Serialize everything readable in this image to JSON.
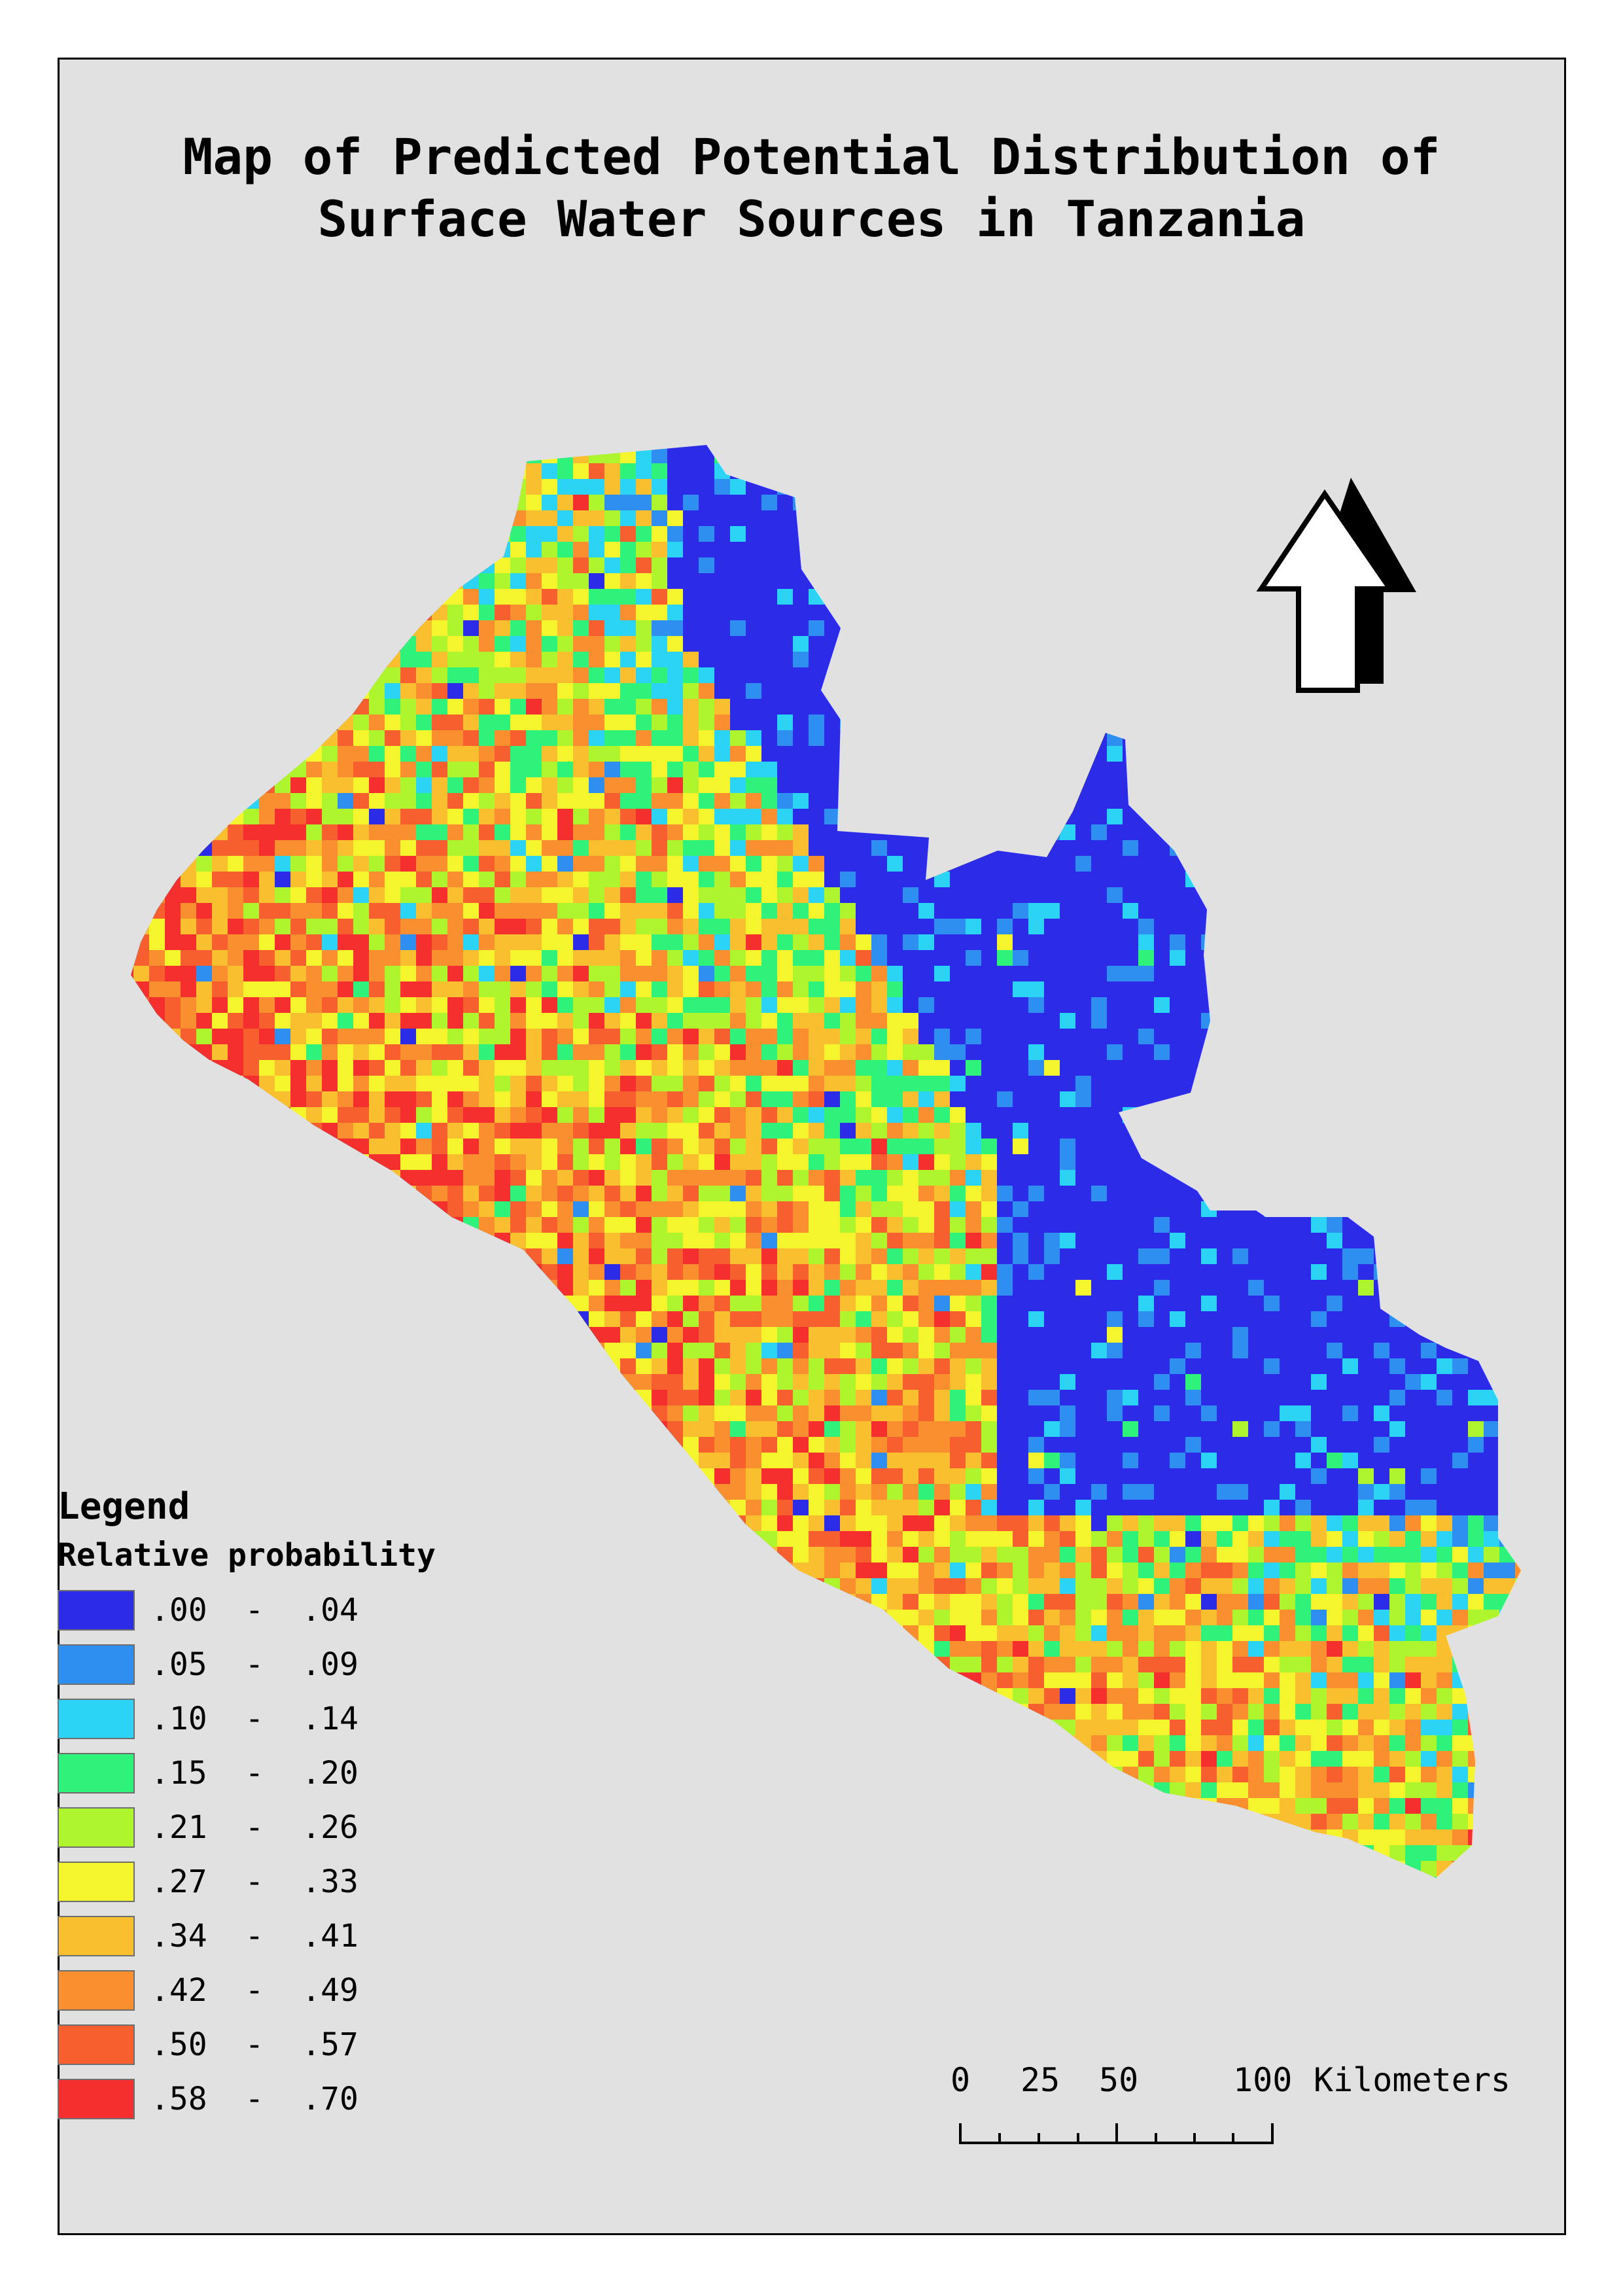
{
  "title": {
    "line1": "Map of Predicted Potential Distribution of",
    "line2": "Surface Water Sources in Tanzania"
  },
  "legend": {
    "title": "Legend",
    "subtitle": "Relative probability",
    "classes": [
      {
        "label": ".00  -  .04",
        "color": "#2b2be8"
      },
      {
        "label": ".05  -  .09",
        "color": "#2e8ff0"
      },
      {
        "label": ".10  -  .14",
        "color": "#2bd4f5"
      },
      {
        "label": ".15  -  .20",
        "color": "#2ff27a"
      },
      {
        "label": ".21  -  .26",
        "color": "#aef52e"
      },
      {
        "label": ".27  -  .33",
        "color": "#f5f52e"
      },
      {
        "label": ".34  -  .41",
        "color": "#f9bf2e"
      },
      {
        "label": ".42  -  .49",
        "color": "#f98f2e"
      },
      {
        "label": ".50  -  .57",
        "color": "#f85f2e"
      },
      {
        "label": ".58  -  .70",
        "color": "#f52e2e"
      }
    ]
  },
  "scale_bar": {
    "labels": [
      "0",
      "25",
      "50",
      "100"
    ],
    "unit": "Kilometers"
  },
  "north_arrow": {
    "icon": "north-arrow-icon"
  }
}
